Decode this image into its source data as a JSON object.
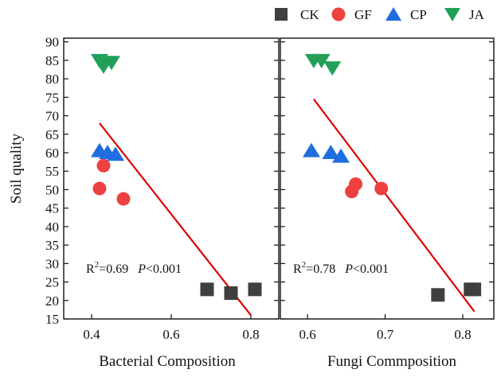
{
  "legend": [
    {
      "key": "CK",
      "label": "CK",
      "color": "#3f3f3f",
      "marker": "square"
    },
    {
      "key": "GF",
      "label": "GF",
      "color": "#ee4040",
      "marker": "circle"
    },
    {
      "key": "CP",
      "label": "CP",
      "color": "#1f6ee0",
      "marker": "triangle-up"
    },
    {
      "key": "JA",
      "label": "JA",
      "color": "#22a05a",
      "marker": "triangle-down"
    }
  ],
  "fit_line_color": "#e00000",
  "chart_data": [
    {
      "type": "scatter",
      "title": "",
      "xlabel": "Bacterial Composition",
      "ylabel": "Soil quality",
      "xlim": [
        0.33,
        0.87
      ],
      "ylim": [
        15,
        91
      ],
      "xticks": [
        0.4,
        0.6,
        0.8
      ],
      "xtick_labels": [
        "0.4",
        "0.6",
        "0.8"
      ],
      "yticks": [
        15,
        20,
        25,
        30,
        35,
        40,
        45,
        50,
        55,
        60,
        65,
        70,
        75,
        80,
        85,
        90
      ],
      "ytick_labels": [
        "15",
        "20",
        "25",
        "30",
        "35",
        "40",
        "45",
        "50",
        "55",
        "60",
        "65",
        "70",
        "75",
        "80",
        "85",
        "90"
      ],
      "series": [
        {
          "name": "CK",
          "points": [
            [
              0.69,
              23
            ],
            [
              0.75,
              22
            ],
            [
              0.81,
              23
            ]
          ]
        },
        {
          "name": "GF",
          "points": [
            [
              0.43,
              56.5
            ],
            [
              0.42,
              50.3
            ],
            [
              0.48,
              47.5
            ]
          ]
        },
        {
          "name": "CP",
          "points": [
            [
              0.42,
              60.5
            ],
            [
              0.44,
              60
            ],
            [
              0.46,
              59.5
            ]
          ]
        },
        {
          "name": "JA",
          "points": [
            [
              0.42,
              85
            ],
            [
              0.43,
              83.5
            ],
            [
              0.45,
              84.5
            ]
          ]
        }
      ],
      "fit_line": [
        [
          0.42,
          68
        ],
        [
          0.8,
          16
        ]
      ],
      "annotation": {
        "r2_prefix": "R",
        "r2_sup": "2",
        "r2_value": "=0.69",
        "p_label": "P",
        "p_value": "<0.001"
      }
    },
    {
      "type": "scatter",
      "title": "",
      "xlabel": "Fungi Commposition",
      "ylabel": "",
      "xlim": [
        0.565,
        0.84
      ],
      "ylim": [
        15,
        91
      ],
      "xticks": [
        0.6,
        0.7,
        0.8
      ],
      "xtick_labels": [
        "0.6",
        "0.7",
        "0.8"
      ],
      "yticks": [
        15,
        20,
        25,
        30,
        35,
        40,
        45,
        50,
        55,
        60,
        65,
        70,
        75,
        80,
        85,
        90
      ],
      "ytick_labels": [],
      "series": [
        {
          "name": "CK",
          "points": [
            [
              0.768,
              21.5
            ],
            [
              0.81,
              23
            ],
            [
              0.815,
              23
            ]
          ]
        },
        {
          "name": "GF",
          "points": [
            [
              0.657,
              49.5
            ],
            [
              0.662,
              51.5
            ],
            [
              0.695,
              50.3
            ]
          ]
        },
        {
          "name": "CP",
          "points": [
            [
              0.605,
              60.5
            ],
            [
              0.63,
              60
            ],
            [
              0.643,
              59
            ]
          ]
        },
        {
          "name": "JA",
          "points": [
            [
              0.608,
              85
            ],
            [
              0.618,
              85
            ],
            [
              0.632,
              83
            ]
          ]
        }
      ],
      "fit_line": [
        [
          0.608,
          74.5
        ],
        [
          0.815,
          17
        ]
      ],
      "annotation": {
        "r2_prefix": "R",
        "r2_sup": "2",
        "r2_value": "=0.78",
        "p_label": "P",
        "p_value": "<0.001"
      }
    }
  ]
}
